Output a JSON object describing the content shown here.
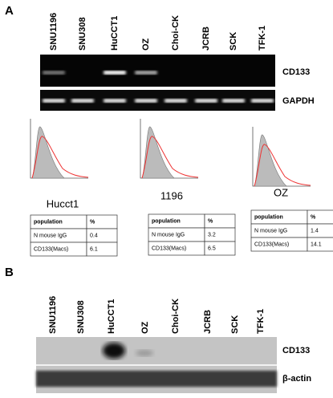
{
  "panel_a": {
    "label": "A",
    "lanes": [
      "SNU1196",
      "SNU308",
      "HuCCT1",
      "OZ",
      "Choi-CK",
      "JCRB",
      "SCK",
      "TFK-1"
    ],
    "gel_labels": [
      "CD133",
      "GAPDH"
    ],
    "flow": [
      {
        "label": "Hucct1",
        "table": {
          "header": [
            "population",
            "%"
          ],
          "rows": [
            [
              "N mouse IgG",
              0.4
            ],
            [
              "CD133(Macs)",
              6.1
            ]
          ]
        }
      },
      {
        "label": "1196",
        "table": {
          "header": [
            "population",
            "%"
          ],
          "rows": [
            [
              "N mouse IgG",
              3.2
            ],
            [
              "CD133(Macs)",
              6.5
            ]
          ]
        }
      },
      {
        "label": "OZ",
        "table": {
          "header": [
            "population",
            "%"
          ],
          "rows": [
            [
              "N mouse IgG",
              1.4
            ],
            [
              "CD133(Macs)",
              14.1
            ]
          ]
        }
      }
    ]
  },
  "panel_b": {
    "label": "B",
    "lanes": [
      "SNU1196",
      "SNU308",
      "HuCCT1",
      "OZ",
      "Choi-CK",
      "JCRB",
      "SCK",
      "TFK-1"
    ],
    "blot_labels": [
      "CD133",
      "β-actin"
    ]
  }
}
